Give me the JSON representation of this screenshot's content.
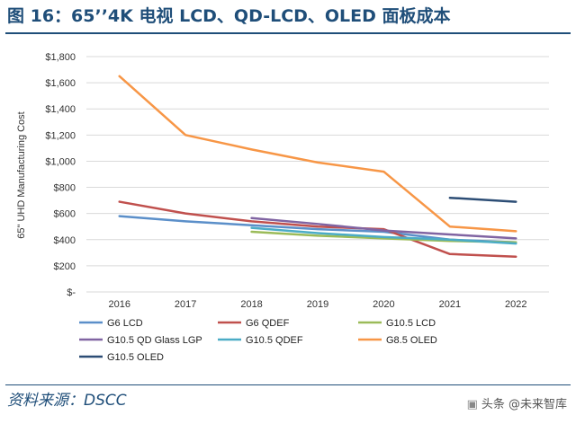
{
  "header": {
    "title": "图 16：65’’4K 电视 LCD、QD-LCD、OLED 面板成本"
  },
  "footer": {
    "source": "资料来源：DSCC",
    "watermark": "头条 @未来智库"
  },
  "colors": {
    "G6 LCD": "#5b8fc9",
    "G6 QDEF": "#c0504d",
    "G10.5 LCD": "#9bbb59",
    "G10.5 QD Glass LGP": "#8064a2",
    "G10.5 QDEF": "#4bacc6",
    "G8.5 OLED": "#f79646",
    "G10.5 OLED": "#2c4d75"
  },
  "chart_data": {
    "type": "line",
    "title": "65’’4K 电视 LCD、QD-LCD、OLED 面板成本",
    "xlabel": "",
    "ylabel": "65\" UHD Manufacturing Cost",
    "categories": [
      "2016",
      "2017",
      "2018",
      "2019",
      "2020",
      "2021",
      "2022"
    ],
    "ylim": [
      0,
      1800
    ],
    "yticks": [
      0,
      200,
      400,
      600,
      800,
      1000,
      1200,
      1400,
      1600,
      1800
    ],
    "ytick_labels": [
      "$-",
      "$200",
      "$400",
      "$600",
      "$800",
      "$1,000",
      "$1,200",
      "$1,400",
      "$1,600",
      "$1,800"
    ],
    "grid": true,
    "legend_position": "bottom",
    "series": [
      {
        "name": "G6 LCD",
        "values": [
          580,
          540,
          510,
          480,
          460,
          400,
          380
        ]
      },
      {
        "name": "G6 QDEF",
        "values": [
          690,
          600,
          540,
          500,
          480,
          290,
          270
        ]
      },
      {
        "name": "G10.5 LCD",
        "values": [
          null,
          null,
          460,
          430,
          410,
          390,
          380
        ]
      },
      {
        "name": "G10.5 QD Glass LGP",
        "values": [
          null,
          null,
          565,
          520,
          470,
          440,
          410
        ]
      },
      {
        "name": "G10.5 QDEF",
        "values": [
          null,
          null,
          490,
          450,
          420,
          400,
          370
        ]
      },
      {
        "name": "G8.5 OLED",
        "values": [
          1650,
          1200,
          1090,
          990,
          920,
          500,
          465
        ]
      },
      {
        "name": "G10.5 OLED",
        "values": [
          null,
          null,
          null,
          null,
          null,
          720,
          690
        ]
      }
    ]
  }
}
